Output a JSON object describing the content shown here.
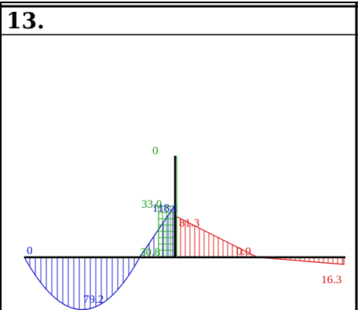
{
  "problem": {
    "number": "13."
  },
  "colors": {
    "axial": "#119911",
    "shear": "#1111cc",
    "moment": "#dd1111",
    "member": "#000000"
  },
  "labels": {
    "moment_left_zero": "0",
    "moment_left_peak": "79.2",
    "moment_mid": "30.8",
    "moment_column_top": "118.1",
    "axial_column_top": "0",
    "axial_column_value": "33.0",
    "shear_right_top": "81.3",
    "shear_right_zero": "0.0",
    "shear_right_end": "16.3"
  }
}
